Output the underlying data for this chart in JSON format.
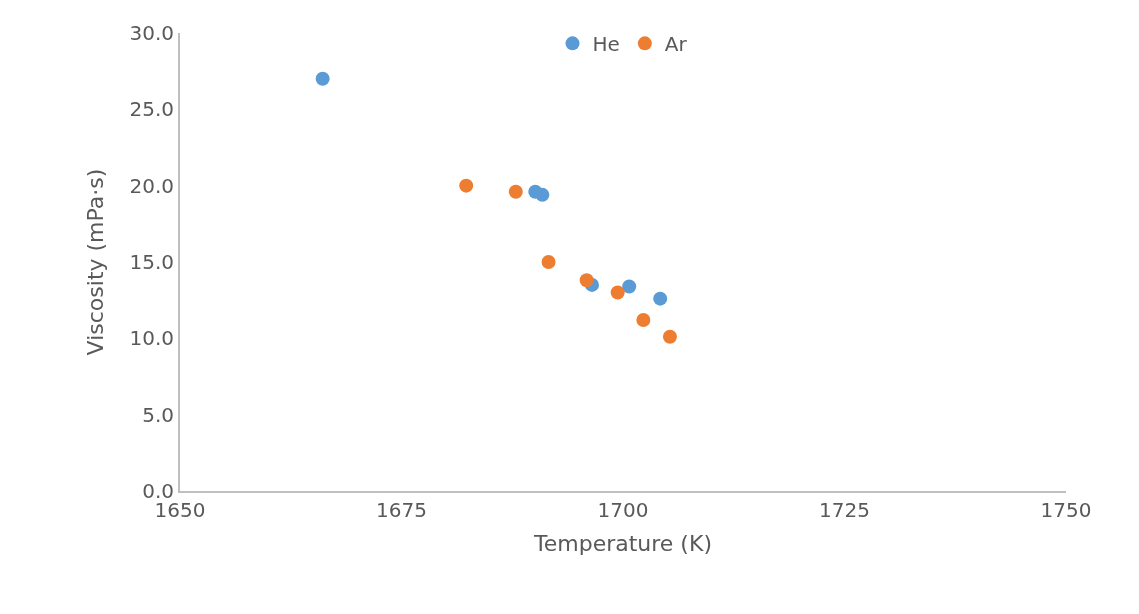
{
  "chart_data": {
    "type": "scatter",
    "xlabel": "Temperature (K)",
    "ylabel": "Viscosity (mPa·s)",
    "xlim": [
      1650,
      1750
    ],
    "xticks": [
      1650,
      1675,
      1700,
      1725,
      1750
    ],
    "ylim": [
      0,
      30
    ],
    "yticks": [
      {
        "value": 0,
        "label": "0.0"
      },
      {
        "value": 5,
        "label": "5.0"
      },
      {
        "value": 10,
        "label": "10.0"
      },
      {
        "value": 15,
        "label": "15.0"
      },
      {
        "value": 20,
        "label": "20.0"
      },
      {
        "value": 25,
        "label": "25.0"
      },
      {
        "value": 30,
        "label": "30.0"
      }
    ],
    "grid": false,
    "legend": "top",
    "marker": "circle",
    "series": [
      {
        "name": "He",
        "color": "#5b9bd5",
        "x": [
          1666.1,
          1690.1,
          1690.9,
          1696.5,
          1700.7,
          1704.2
        ],
        "values": [
          27.0,
          19.6,
          19.4,
          13.5,
          13.4,
          12.6
        ]
      },
      {
        "name": "Ar",
        "color": "#ed7d31",
        "x": [
          1682.3,
          1687.9,
          1691.6,
          1695.9,
          1699.4,
          1702.3,
          1705.3
        ],
        "values": [
          20.0,
          19.6,
          15.0,
          13.8,
          13.0,
          11.2,
          10.1
        ]
      }
    ]
  }
}
